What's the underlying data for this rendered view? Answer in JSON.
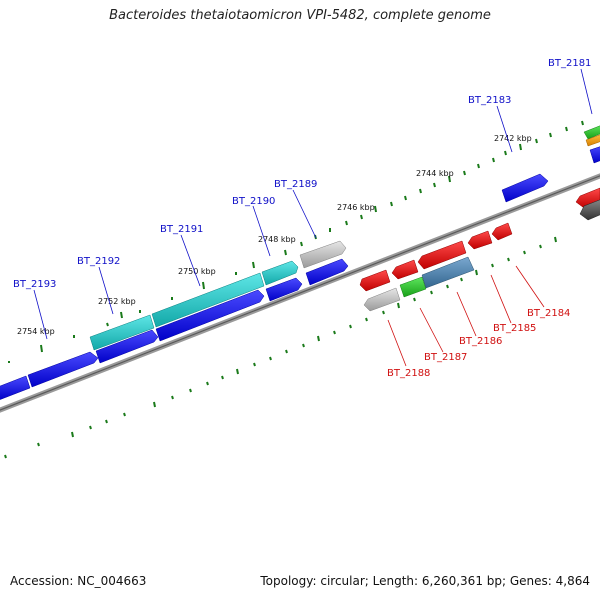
{
  "title": "Bacteroides thetaiotaomicron VPI-5482, complete genome",
  "footer": {
    "accession": "Accession: NC_004663",
    "summary": "Topology: circular; Length: 6,260,361 bp; Genes: 4,864"
  },
  "kbp_labels": [
    "2742 kbp",
    "2744 kbp",
    "2746 kbp",
    "2748 kbp",
    "2750 kbp",
    "2752 kbp",
    "2754 kbp"
  ],
  "top_strand_genes": [
    "BT_2181",
    "BT_2183",
    "BT_2189",
    "BT_2190",
    "BT_2191",
    "BT_2192",
    "BT_2193"
  ],
  "bottom_strand_genes": [
    "BT_2184",
    "BT_2185",
    "BT_2186",
    "BT_2187",
    "BT_2188"
  ],
  "colors": {
    "blue": "#1515e6",
    "cyan": "#1fc8c8",
    "gray": "#bdbdbd",
    "red": "#e61818",
    "green": "#2fc82f",
    "steel": "#4f86b4",
    "orange": "#f0a020",
    "dark": "#555555",
    "backbone": "#808080",
    "ticks": "#1a7a1a"
  }
}
